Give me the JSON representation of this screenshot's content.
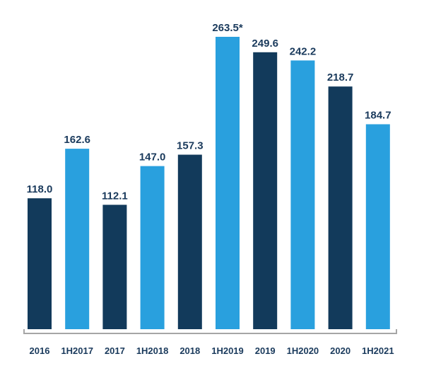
{
  "chart_data": {
    "type": "bar",
    "categories": [
      "2016",
      "1H2017",
      "2017",
      "1H2018",
      "2018",
      "1H2019",
      "2019",
      "1H2020",
      "2020",
      "1H2021"
    ],
    "values": [
      118.0,
      162.6,
      112.1,
      147.0,
      157.3,
      263.5,
      249.6,
      242.2,
      218.7,
      184.7
    ],
    "data_labels": [
      "118.0",
      "162.6",
      "112.1",
      "147.0",
      "157.3",
      "263.5*",
      "249.6",
      "242.2",
      "218.7",
      "184.7"
    ],
    "bar_colors": [
      "#123a5b",
      "#29a0de",
      "#123a5b",
      "#29a0de",
      "#123a5b",
      "#29a0de",
      "#123a5b",
      "#29a0de",
      "#123a5b",
      "#29a0de"
    ],
    "colors": {
      "dark": "#123a5b",
      "light": "#29a0de",
      "label": "#1a3a5c",
      "axis": "#a6a6a6"
    },
    "title": "",
    "xlabel": "",
    "ylabel": "",
    "ylim": [
      0,
      263.5
    ],
    "grid": false,
    "legend": "none"
  }
}
